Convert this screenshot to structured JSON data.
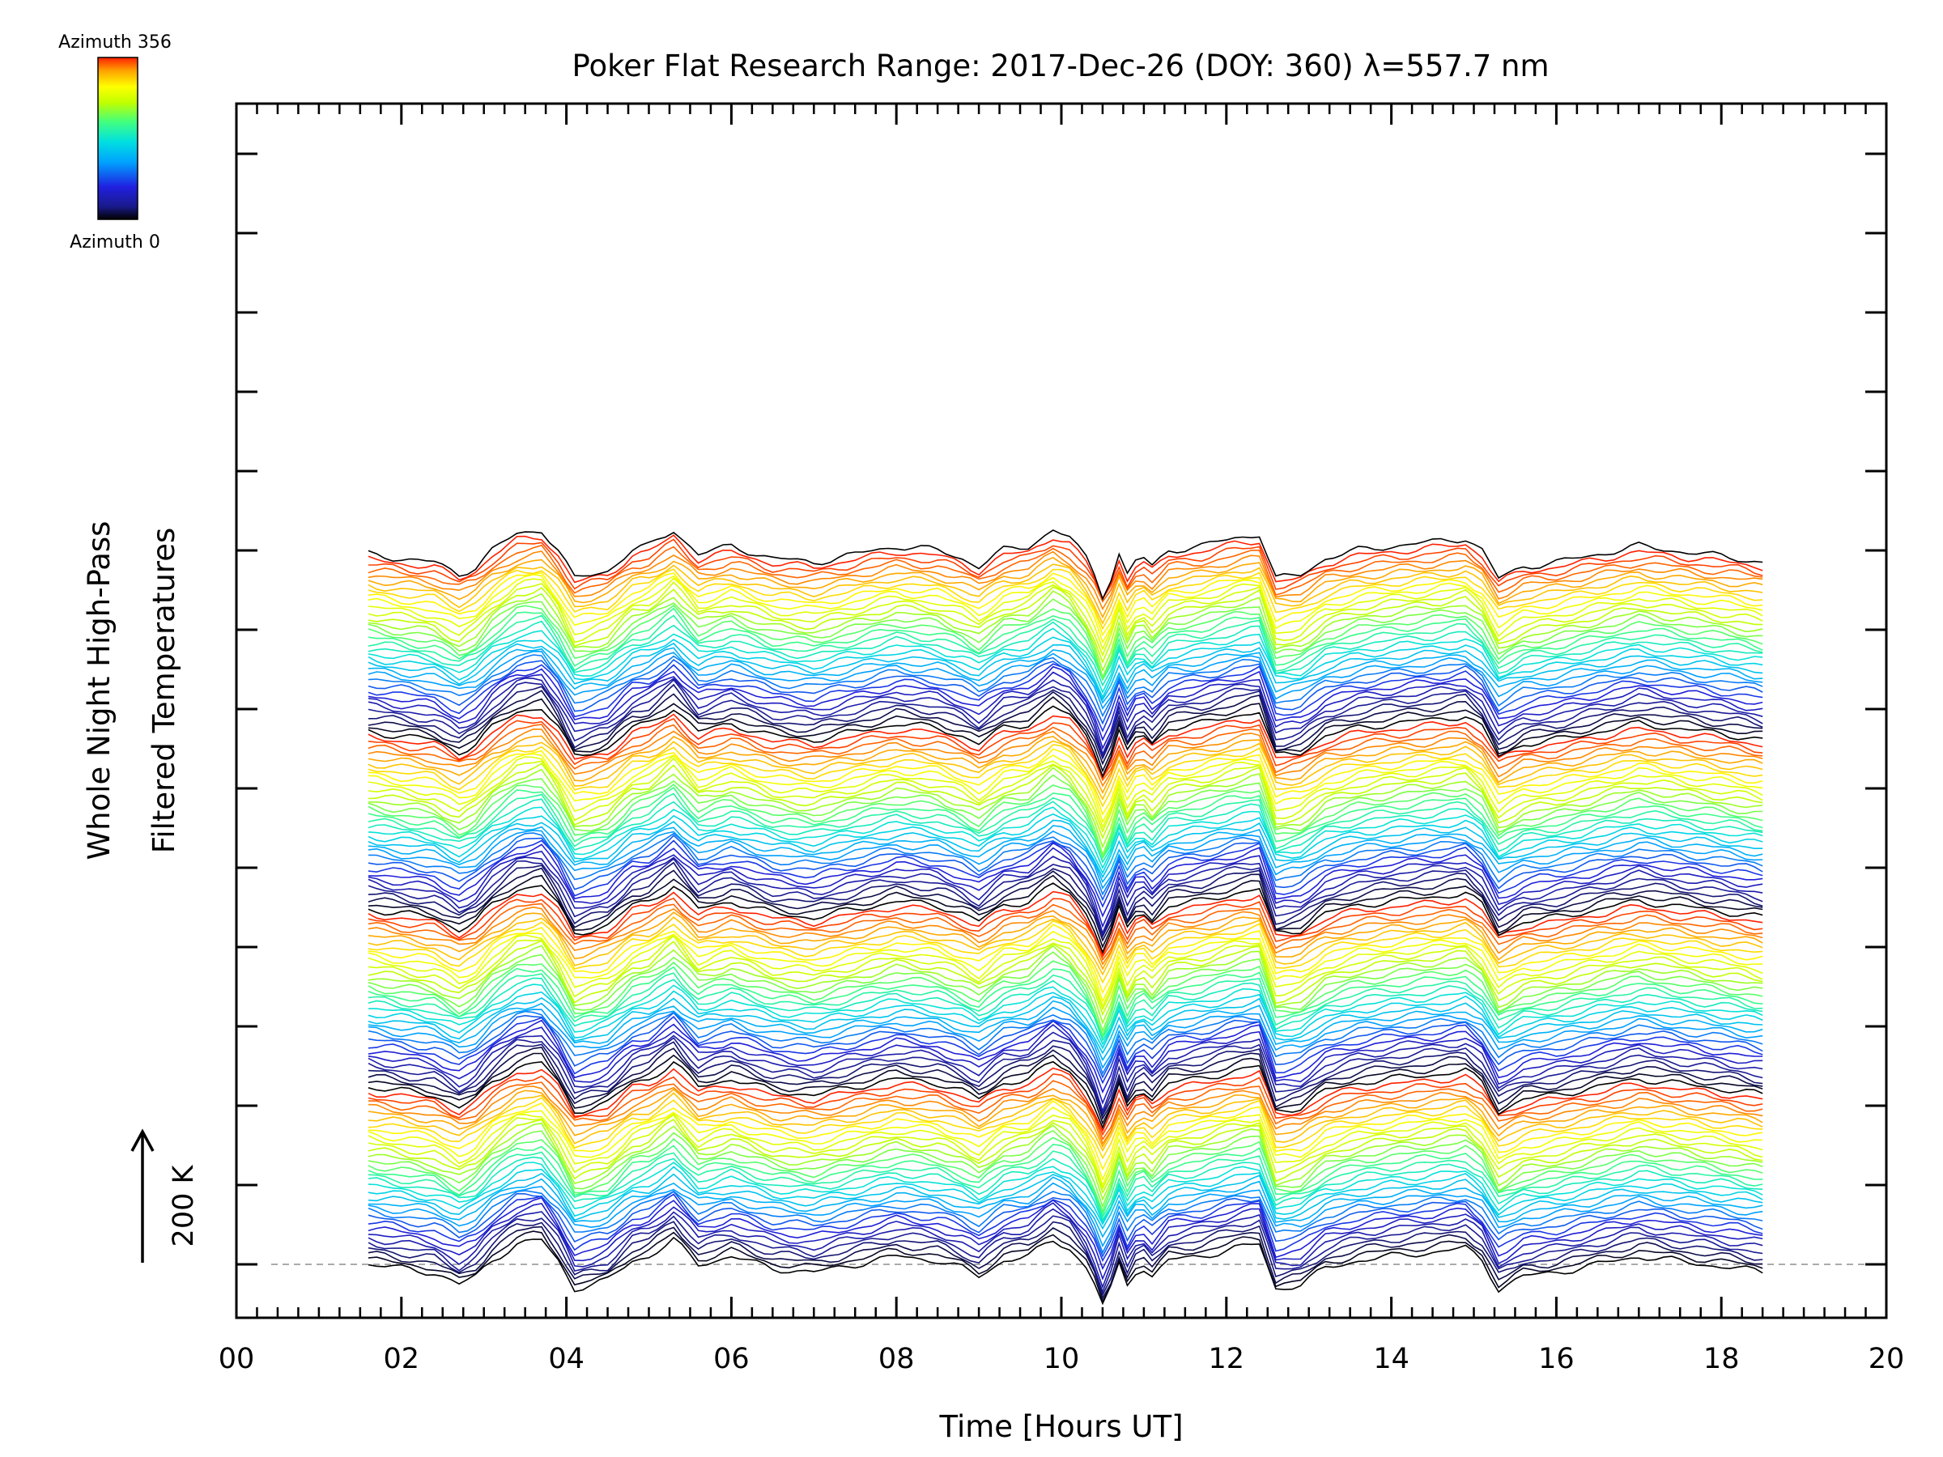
{
  "chart_data": {
    "type": "line",
    "title": "Poker Flat Research Range: 2017-Dec-26 (DOY: 360) λ=557.7 nm",
    "xlabel": "Time [Hours UT]",
    "ylabel_lines": [
      "Whole Night High-Pass",
      "Filtered Temperatures"
    ],
    "xlim": [
      0,
      20
    ],
    "x_ticks": [
      "00",
      "02",
      "04",
      "06",
      "08",
      "10",
      "12",
      "14",
      "16",
      "18",
      "20"
    ],
    "x_range_of_series": [
      1.6,
      18.5
    ],
    "series_count": 137,
    "series_offset_note": "stacked",
    "scale_bar_label": "200 K",
    "colorbar": {
      "top_label": "Azimuth 356",
      "bottom_label": "Azimuth 0",
      "colormap": [
        "#000000",
        "#1a1a8c",
        "#2020e0",
        "#00a0ff",
        "#00e0e0",
        "#40ff80",
        "#c0ff00",
        "#ffff00",
        "#ffa000",
        "#ff2000"
      ]
    },
    "reference_line_color": "#aaaaaa",
    "base_profile": [
      [
        1.6,
        0
      ],
      [
        2.0,
        -5
      ],
      [
        2.4,
        -10
      ],
      [
        2.7,
        -25
      ],
      [
        2.9,
        -15
      ],
      [
        3.1,
        5
      ],
      [
        3.4,
        25
      ],
      [
        3.7,
        30
      ],
      [
        3.9,
        5
      ],
      [
        4.1,
        -30
      ],
      [
        4.5,
        -20
      ],
      [
        4.8,
        5
      ],
      [
        5.0,
        10
      ],
      [
        5.3,
        30
      ],
      [
        5.6,
        0
      ],
      [
        6.0,
        10
      ],
      [
        6.5,
        -5
      ],
      [
        7.0,
        -10
      ],
      [
        7.5,
        0
      ],
      [
        8.0,
        10
      ],
      [
        8.5,
        5
      ],
      [
        8.8,
        -5
      ],
      [
        9.0,
        -15
      ],
      [
        9.3,
        5
      ],
      [
        9.6,
        10
      ],
      [
        9.9,
        30
      ],
      [
        10.1,
        20
      ],
      [
        10.35,
        -10
      ],
      [
        10.5,
        -50
      ],
      [
        10.6,
        -30
      ],
      [
        10.7,
        0
      ],
      [
        10.8,
        -25
      ],
      [
        10.95,
        0
      ],
      [
        11.1,
        -15
      ],
      [
        11.3,
        5
      ],
      [
        11.7,
        10
      ],
      [
        12.1,
        20
      ],
      [
        12.4,
        25
      ],
      [
        12.6,
        -30
      ],
      [
        12.9,
        -25
      ],
      [
        13.2,
        -5
      ],
      [
        13.6,
        5
      ],
      [
        14.0,
        10
      ],
      [
        14.5,
        15
      ],
      [
        14.9,
        20
      ],
      [
        15.1,
        5
      ],
      [
        15.3,
        -30
      ],
      [
        15.6,
        -15
      ],
      [
        16.0,
        -10
      ],
      [
        16.5,
        0
      ],
      [
        17.0,
        10
      ],
      [
        17.4,
        5
      ],
      [
        17.8,
        0
      ],
      [
        18.2,
        -5
      ],
      [
        18.5,
        -10
      ]
    ]
  }
}
